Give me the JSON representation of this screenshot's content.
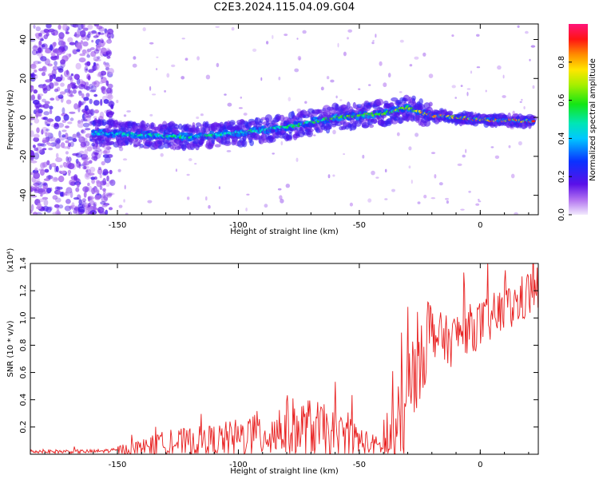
{
  "title": "C2E3.2024.115.04.09.G04",
  "chart_data": [
    {
      "type": "heatmap",
      "name": "spectrogram",
      "xlabel": "Height of straight line (km)",
      "ylabel": "Frequency (Hz)",
      "xlim": [
        -186,
        24
      ],
      "ylim": [
        -50,
        48
      ],
      "xticks": [
        -150,
        -100,
        -50,
        0
      ],
      "yticks": [
        40,
        20,
        0,
        -20,
        -40
      ],
      "colorbar": {
        "label": "Normalized spectral amplitude",
        "range": [
          0.0,
          1.0
        ],
        "ticks": [
          "0.0",
          "0.2",
          "0.4",
          "0.6",
          "0.8"
        ],
        "colormap": "rainbow (purple-blue-cyan-green-yellow-red-pink)"
      },
      "signal_track": {
        "description_x": [
          -160,
          -140,
          -120,
          -100,
          -80,
          -60,
          -40,
          -30,
          -20,
          0,
          22
        ],
        "frequency_hz": [
          -8,
          -9,
          -10,
          -8,
          -5,
          0,
          2,
          5,
          1,
          -1,
          -2
        ],
        "peak_amplitude": [
          0.45,
          0.5,
          0.55,
          0.5,
          0.55,
          0.6,
          0.65,
          0.7,
          0.85,
          0.9,
          0.92
        ]
      },
      "noise_region_x": [
        -186,
        -152
      ]
    },
    {
      "type": "line",
      "name": "snr",
      "xlabel": "Height of straight line (km)",
      "ylabel": "SNR (10 * v/v)",
      "yscale_label": "(x10⁴)",
      "xlim": [
        -186,
        24
      ],
      "ylim": [
        0,
        1.4
      ],
      "xticks": [
        -150,
        -100,
        -50,
        0
      ],
      "yticks": [
        "0.2",
        "0.4",
        "0.6",
        "0.8",
        "1.0",
        "1.2",
        "1.4"
      ],
      "color": "#e82020",
      "series": [
        {
          "x": [
            -186,
            -160,
            -150,
            -140,
            -130,
            -120,
            -110,
            -100,
            -95,
            -90,
            -85,
            -80,
            -75,
            -70,
            -65,
            -60,
            -55,
            -50,
            -45,
            -40,
            -35,
            -32,
            -30,
            -28,
            -26,
            -24,
            -22,
            -20,
            -18,
            -15,
            -12,
            -10,
            -5,
            0,
            5,
            10,
            15,
            20,
            24
          ],
          "y": [
            0.02,
            0.02,
            0.03,
            0.05,
            0.08,
            0.09,
            0.1,
            0.12,
            0.14,
            0.15,
            0.17,
            0.2,
            0.18,
            0.19,
            0.17,
            0.14,
            0.13,
            0.1,
            0.07,
            0.05,
            0.1,
            0.25,
            0.4,
            0.55,
            0.7,
            0.8,
            0.85,
            0.9,
            0.88,
            0.85,
            0.82,
            0.88,
            0.92,
            0.95,
            1.0,
            1.05,
            1.1,
            1.18,
            1.22
          ]
        }
      ]
    }
  ]
}
